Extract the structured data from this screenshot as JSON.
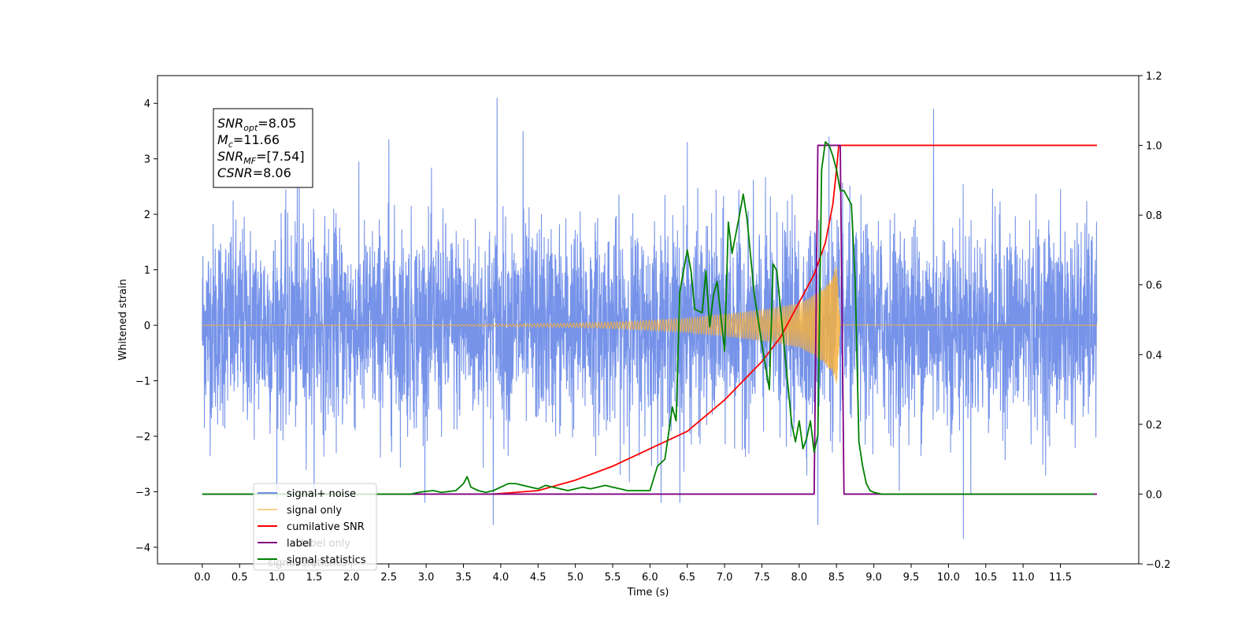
{
  "chart_data": {
    "type": "line",
    "xlabel": "Time (s)",
    "ylabel_left": "Whitened strain",
    "ylabel_right": "",
    "xlim": [
      -0.6,
      12.55
    ],
    "ylim_left": [
      -4.3,
      4.5
    ],
    "ylim_right": [
      -0.2,
      1.2
    ],
    "x_ticks": [
      0.0,
      0.5,
      1.0,
      1.5,
      2.0,
      2.5,
      3.0,
      3.5,
      4.0,
      4.5,
      5.0,
      5.5,
      6.0,
      6.5,
      7.0,
      7.5,
      8.0,
      8.5,
      9.0,
      9.5,
      10.0,
      10.5,
      11.0,
      11.5
    ],
    "x_tick_labels": [
      "0.0",
      "0.5",
      "1.0",
      "1.5",
      "2.0",
      "2.5",
      "3.0",
      "3.5",
      "4.0",
      "4.5",
      "5.0",
      "5.5",
      "6.0",
      "6.5",
      "7.0",
      "7.5",
      "8.0",
      "8.5",
      "9.0",
      "9.5",
      "10.0",
      "10.5",
      "11.0",
      "11.5"
    ],
    "y_left_ticks": [
      -4,
      -3,
      -2,
      -1,
      0,
      1,
      2,
      3,
      4
    ],
    "y_left_tick_labels": [
      "−4",
      "−3",
      "−2",
      "−1",
      "0",
      "1",
      "2",
      "3",
      "4"
    ],
    "y_right_ticks": [
      -0.2,
      0.0,
      0.2,
      0.4,
      0.6,
      0.8,
      1.0,
      1.2
    ],
    "y_right_tick_labels": [
      "−0.2",
      "0.0",
      "0.2",
      "0.4",
      "0.6",
      "0.8",
      "1.0",
      "1.2"
    ],
    "grid": false,
    "legend_position": "lower-left",
    "series": [
      {
        "name": "signal+ noise",
        "axis": "left",
        "color": "#4169e1",
        "style": "whitened noise band, roughly ±1.7 with spikes to about ±4; extremes at t≈3.95 (4.1), 9.8 (3.9), 3.9 (−3.6), 10.2 (−3.8), 8.25 (−3.6)",
        "x_range": [
          0.0,
          11.99
        ]
      },
      {
        "name": "signal only",
        "axis": "left",
        "color": "#f5b041",
        "envelope": {
          "t": [
            0.0,
            3.0,
            4.0,
            5.0,
            5.5,
            6.0,
            6.5,
            7.0,
            7.5,
            8.0,
            8.2,
            8.35,
            8.45,
            8.5,
            8.55,
            12.0
          ],
          "amp": [
            0.0,
            0.01,
            0.02,
            0.04,
            0.06,
            0.09,
            0.13,
            0.2,
            0.28,
            0.4,
            0.55,
            0.7,
            0.9,
            1.1,
            0.05,
            0.0
          ]
        }
      },
      {
        "name": "cumilative SNR",
        "axis": "right",
        "color": "#ff0000",
        "x": [
          3.9,
          4.5,
          5.0,
          5.5,
          6.0,
          6.5,
          7.0,
          7.5,
          7.75,
          8.0,
          8.2,
          8.35,
          8.45,
          8.5,
          8.53,
          11.99
        ],
        "y": [
          0.0,
          0.01,
          0.04,
          0.08,
          0.13,
          0.18,
          0.27,
          0.38,
          0.45,
          0.55,
          0.63,
          0.72,
          0.83,
          0.93,
          1.0,
          1.0
        ]
      },
      {
        "name": "label",
        "axis": "right",
        "color": "#800080",
        "x": [
          0.0,
          8.2,
          8.25,
          8.55,
          8.6,
          11.99
        ],
        "y": [
          0.0,
          0.0,
          1.0,
          1.0,
          0.0,
          0.0
        ]
      },
      {
        "name": "signal statistics",
        "axis": "right",
        "color": "#008000",
        "x": [
          0.0,
          2.8,
          2.9,
          3.0,
          3.1,
          3.2,
          3.4,
          3.5,
          3.55,
          3.6,
          3.7,
          3.8,
          3.9,
          4.0,
          4.1,
          4.2,
          4.3,
          4.4,
          4.5,
          4.6,
          4.7,
          4.8,
          4.9,
          5.0,
          5.1,
          5.2,
          5.3,
          5.4,
          5.5,
          5.6,
          5.7,
          5.8,
          6.0,
          6.1,
          6.2,
          6.3,
          6.35,
          6.4,
          6.5,
          6.55,
          6.6,
          6.7,
          6.75,
          6.8,
          6.85,
          6.9,
          7.0,
          7.05,
          7.1,
          7.2,
          7.25,
          7.3,
          7.4,
          7.5,
          7.6,
          7.65,
          7.7,
          7.8,
          7.9,
          7.95,
          8.0,
          8.05,
          8.1,
          8.15,
          8.2,
          8.25,
          8.3,
          8.35,
          8.4,
          8.45,
          8.5,
          8.55,
          8.6,
          8.65,
          8.7,
          8.75,
          8.8,
          8.85,
          8.9,
          8.95,
          9.0,
          9.1,
          9.2,
          11.95
        ],
        "y": [
          0.0,
          0.0,
          0.005,
          0.008,
          0.01,
          0.005,
          0.01,
          0.03,
          0.05,
          0.02,
          0.01,
          0.005,
          0.01,
          0.02,
          0.03,
          0.03,
          0.025,
          0.02,
          0.015,
          0.025,
          0.02,
          0.015,
          0.01,
          0.015,
          0.02,
          0.015,
          0.02,
          0.025,
          0.02,
          0.015,
          0.01,
          0.01,
          0.01,
          0.08,
          0.1,
          0.25,
          0.21,
          0.58,
          0.7,
          0.64,
          0.53,
          0.52,
          0.64,
          0.48,
          0.57,
          0.61,
          0.41,
          0.78,
          0.69,
          0.8,
          0.86,
          0.79,
          0.57,
          0.43,
          0.3,
          0.66,
          0.64,
          0.42,
          0.2,
          0.15,
          0.21,
          0.13,
          0.16,
          0.21,
          0.12,
          0.17,
          0.93,
          1.01,
          1.0,
          0.97,
          0.93,
          0.87,
          0.87,
          0.85,
          0.83,
          0.61,
          0.15,
          0.08,
          0.03,
          0.01,
          0.005,
          0.0,
          0.0,
          0.0
        ]
      }
    ],
    "legend_entries": [
      "signal+ noise",
      "signal only",
      "cumilative SNR",
      "label",
      "signal statistics"
    ],
    "legend_ghost_texts": [
      "label only",
      "signal statistics"
    ],
    "stats_box": [
      {
        "base": "SNR",
        "sub": "opt",
        "value": "=8.05"
      },
      {
        "base": "M",
        "sub": "c",
        "value": "=11.66"
      },
      {
        "base": "SNR",
        "sub": "MF",
        "value": "=[7.54]"
      },
      {
        "base": "CSNR",
        "sub": "",
        "value": "=8.06"
      }
    ]
  }
}
